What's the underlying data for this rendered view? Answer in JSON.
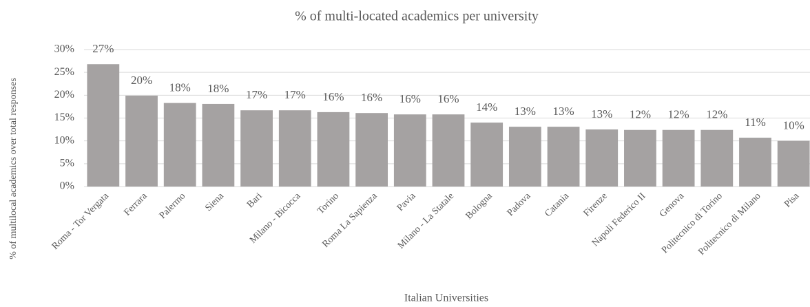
{
  "chart_data": {
    "type": "bar",
    "title": "% of multi-located academics per university",
    "x_label": "Italian Universities",
    "y_label": "% of multilocal  academics over total responses",
    "categories": [
      "Roma - Tor Vergata",
      "Ferrara",
      "Palermo",
      "Siena",
      "Bari",
      "Milano - Bicocca",
      "Torino",
      "Roma La Sapienza",
      "Pavia",
      "Milano - La Statale",
      "Bologna",
      "Padova",
      "Catania",
      "Firenze",
      "Napoli Federico II",
      "Genova",
      "Politecnico di Torino",
      "Politecnico di Milano",
      "Pisa"
    ],
    "values": [
      26.8,
      19.9,
      18.3,
      18.1,
      16.7,
      16.7,
      16.3,
      16.1,
      15.8,
      15.8,
      14.0,
      13.1,
      13.1,
      12.5,
      12.4,
      12.4,
      12.4,
      10.7,
      10.0
    ],
    "value_labels": [
      "27%",
      "20%",
      "18%",
      "18%",
      "17%",
      "17%",
      "16%",
      "16%",
      "16%",
      "16%",
      "14%",
      "13%",
      "13%",
      "13%",
      "12%",
      "12%",
      "12%",
      "11%",
      "10%"
    ],
    "color": "#a5a2a2",
    "ylim": [
      0,
      30
    ],
    "yticks": [
      {
        "value": 0,
        "label": "0%"
      },
      {
        "value": 5,
        "label": "5%"
      },
      {
        "value": 10,
        "label": "10%"
      },
      {
        "value": 15,
        "label": "15%"
      },
      {
        "value": 20,
        "label": "20%"
      },
      {
        "value": 25,
        "label": "25%"
      },
      {
        "value": 30,
        "label": "30%"
      }
    ],
    "grid": true
  }
}
